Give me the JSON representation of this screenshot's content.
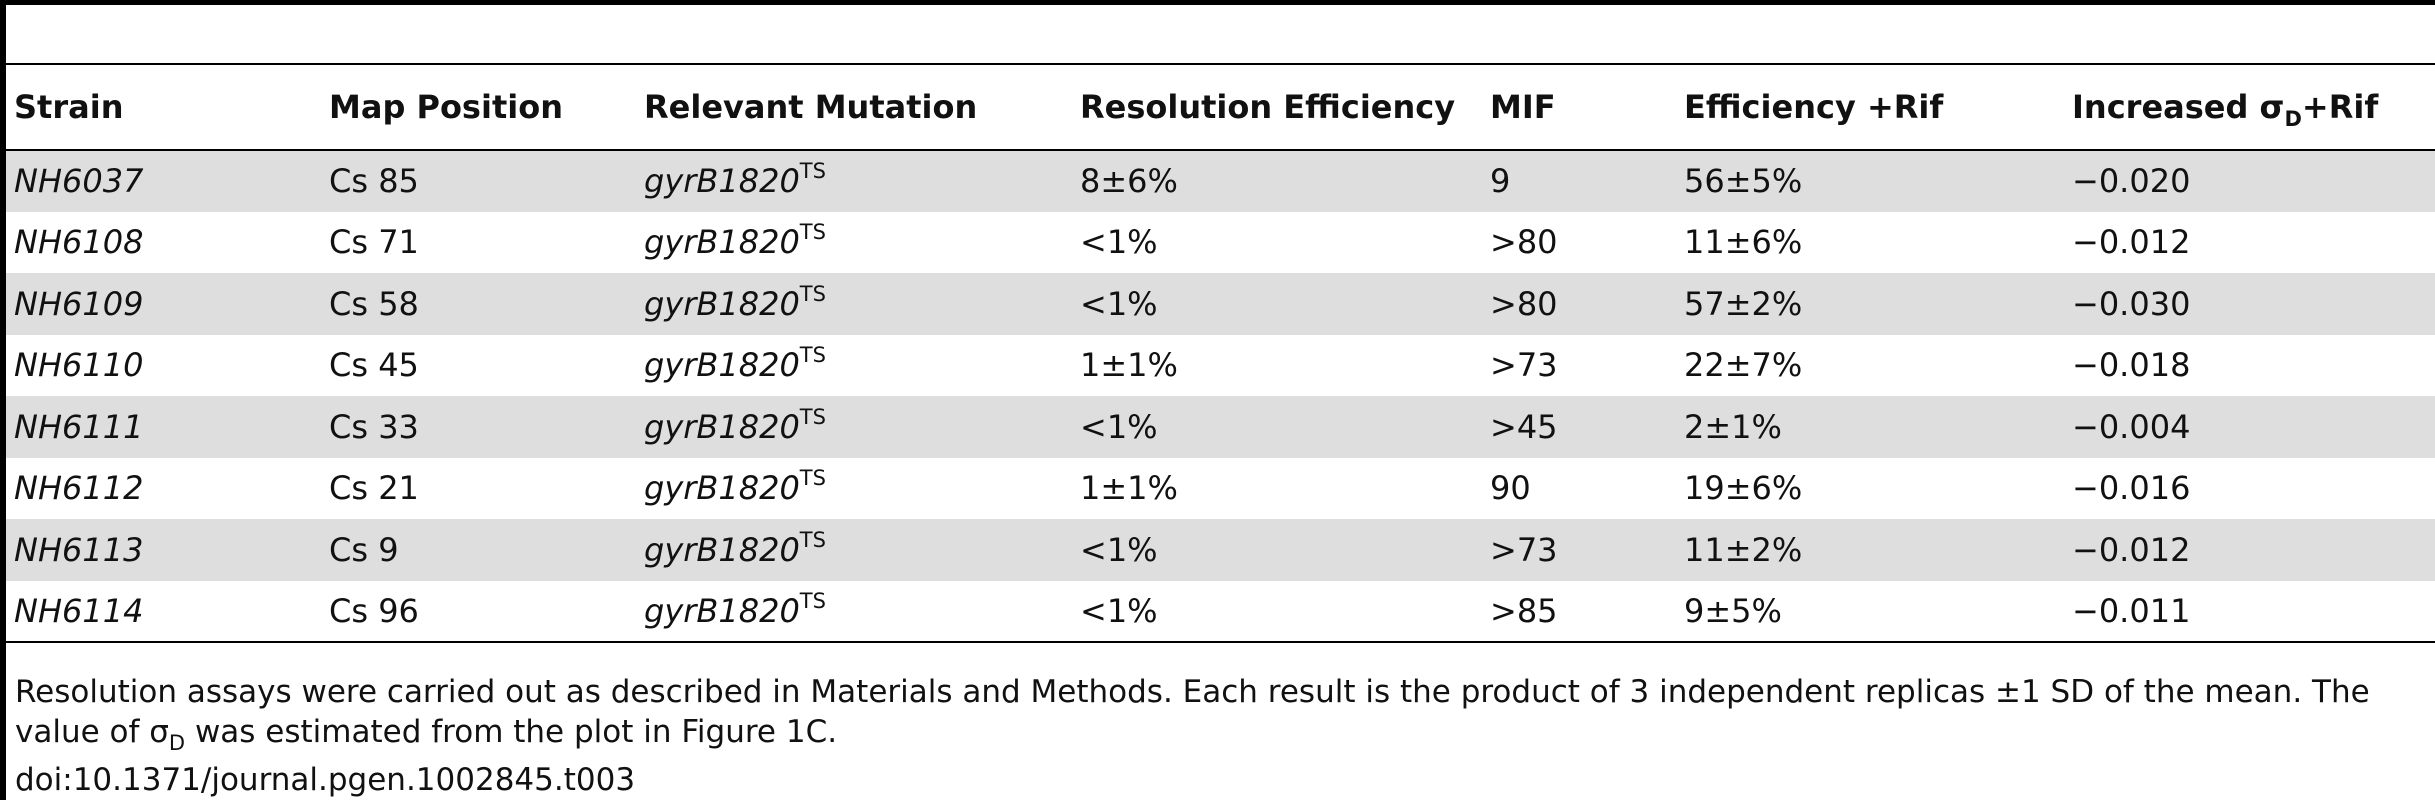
{
  "table": {
    "headers": {
      "strain": "Strain",
      "map_position": "Map Position",
      "relevant_mutation": "Relevant Mutation",
      "resolution_efficiency": "Resolution Efficiency",
      "mif": "MIF",
      "efficiency_rif": "Efficiency +Rif",
      "increased_sigma_prefix": "Increased σ",
      "increased_sigma_sub": "D",
      "increased_sigma_suffix": "+Rif"
    },
    "rows": [
      {
        "strain": "NH6037",
        "map_position": "Cs 85",
        "mutation": "gyrB1820",
        "mutation_sup": "TS",
        "resolution_efficiency": "8±6%",
        "mif": "9",
        "efficiency_rif": "56±5%",
        "increased_sigma": "−0.020"
      },
      {
        "strain": "NH6108",
        "map_position": "Cs 71",
        "mutation": "gyrB1820",
        "mutation_sup": "TS",
        "resolution_efficiency": "<1%",
        "mif": ">80",
        "efficiency_rif": "11±6%",
        "increased_sigma": "−0.012"
      },
      {
        "strain": "NH6109",
        "map_position": "Cs 58",
        "mutation": "gyrB1820",
        "mutation_sup": "TS",
        "resolution_efficiency": "<1%",
        "mif": ">80",
        "efficiency_rif": "57±2%",
        "increased_sigma": "−0.030"
      },
      {
        "strain": "NH6110",
        "map_position": "Cs 45",
        "mutation": "gyrB1820",
        "mutation_sup": "TS",
        "resolution_efficiency": "1±1%",
        "mif": ">73",
        "efficiency_rif": "22±7%",
        "increased_sigma": "−0.018"
      },
      {
        "strain": "NH6111",
        "map_position": "Cs 33",
        "mutation": "gyrB1820",
        "mutation_sup": "TS",
        "resolution_efficiency": "<1%",
        "mif": ">45",
        "efficiency_rif": "2±1%",
        "increased_sigma": "−0.004"
      },
      {
        "strain": "NH6112",
        "map_position": "Cs 21",
        "mutation": "gyrB1820",
        "mutation_sup": "TS",
        "resolution_efficiency": "1±1%",
        "mif": "90",
        "efficiency_rif": "19±6%",
        "increased_sigma": "−0.016"
      },
      {
        "strain": "NH6113",
        "map_position": "Cs 9",
        "mutation": "gyrB1820",
        "mutation_sup": "TS",
        "resolution_efficiency": "<1%",
        "mif": ">73",
        "efficiency_rif": "11±2%",
        "increased_sigma": "−0.012"
      },
      {
        "strain": "NH6114",
        "map_position": "Cs 96",
        "mutation": "gyrB1820",
        "mutation_sup": "TS",
        "resolution_efficiency": "<1%",
        "mif": ">85",
        "efficiency_rif": "9±5%",
        "increased_sigma": "−0.011"
      }
    ]
  },
  "footnote": {
    "part1": "Resolution assays were carried out as described in Materials and Methods. Each result is the product of 3 independent replicas ±1 SD of the mean. The value of σ",
    "sub": "D",
    "part2": " was estimated from the plot in Figure 1C."
  },
  "doi": "doi:10.1371/journal.pgen.1002845.t003"
}
